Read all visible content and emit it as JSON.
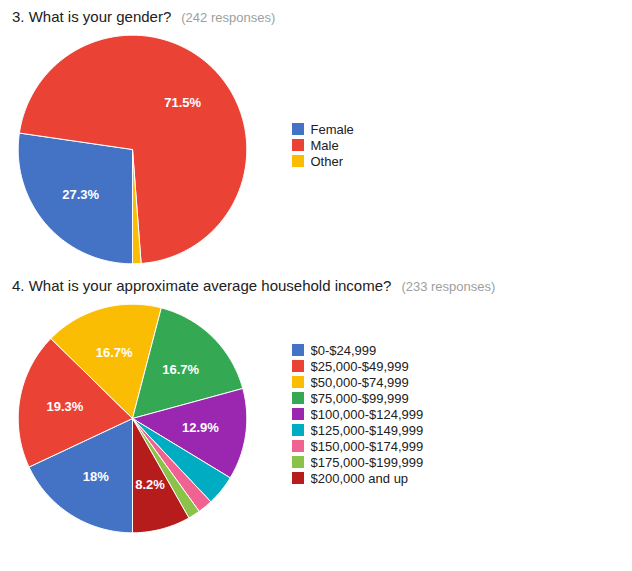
{
  "chart_data": [
    {
      "type": "pie",
      "title": "3. What is your gender?",
      "subtitle": "(242 responses)",
      "categories": [
        "Female",
        "Male",
        "Other"
      ],
      "values": [
        27.3,
        71.5,
        1.2
      ],
      "colors": [
        "#4472C4",
        "#EA4335",
        "#FBBC04"
      ],
      "value_labels": [
        "27.3%",
        "71.5%",
        null
      ],
      "data_labels": true,
      "legend": "right"
    },
    {
      "type": "pie",
      "title": "4. What is your approximate average household income?",
      "subtitle": "(233 responses)",
      "categories": [
        "$0-$24,999",
        "$25,000-$49,999",
        "$50,000-$74,999",
        "$75,000-$99,999",
        "$100,000-$124,999",
        "$125,000-$149,999",
        "$150,000-$174,999",
        "$175,000-$199,999",
        "$200,000 and up"
      ],
      "values": [
        18.0,
        19.3,
        16.7,
        16.7,
        12.9,
        4.3,
        2.1,
        1.7,
        8.2
      ],
      "colors": [
        "#4472C4",
        "#EA4335",
        "#FBBC04",
        "#34A853",
        "#9B26AF",
        "#00ACC1",
        "#F06292",
        "#8BC34A",
        "#B71C1C"
      ],
      "value_labels": [
        "18%",
        "19.3%",
        "16.7%",
        "16.7%",
        "12.9%",
        null,
        null,
        null,
        "8.2%"
      ],
      "data_labels": true,
      "legend": "right"
    }
  ]
}
